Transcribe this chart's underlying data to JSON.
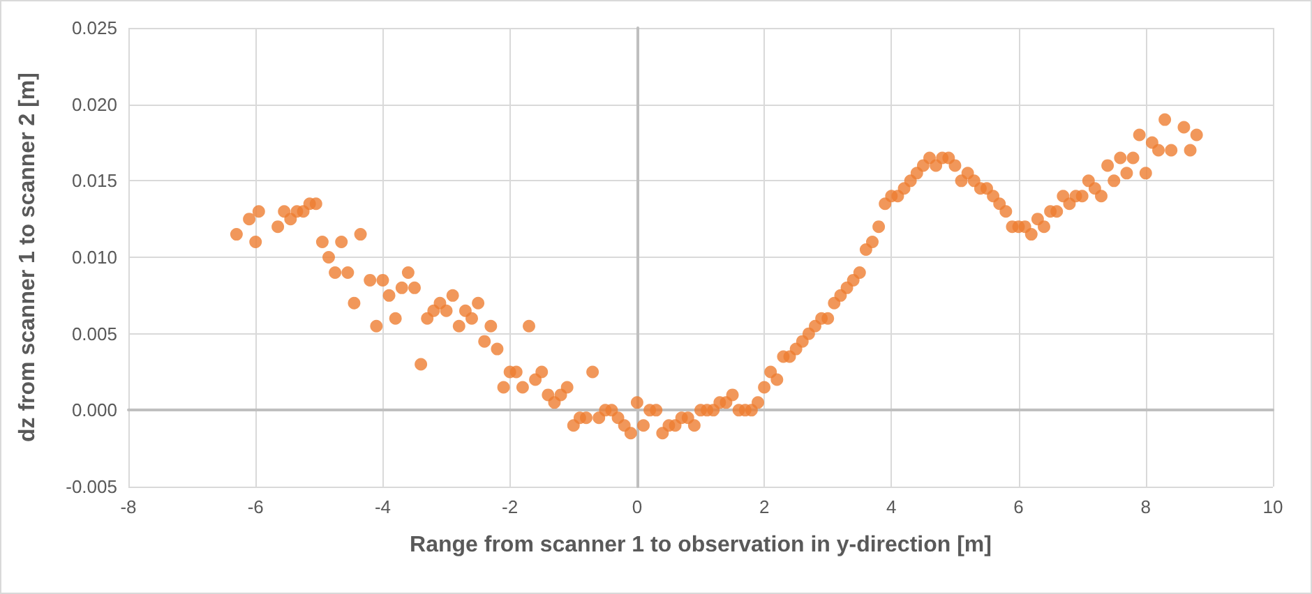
{
  "chart_data": {
    "type": "scatter",
    "xlabel": "Range from scanner 1 to observation in y-direction [m]",
    "ylabel": "dz from scanner 1 to scanner 2 [m]",
    "x": [
      -6.3,
      -6.1,
      -6.0,
      -5.95,
      -5.65,
      -5.55,
      -5.45,
      -5.35,
      -5.25,
      -5.15,
      -5.05,
      -4.95,
      -4.85,
      -4.75,
      -4.65,
      -4.55,
      -4.45,
      -4.35,
      -4.2,
      -4.1,
      -4.0,
      -3.9,
      -3.8,
      -3.7,
      -3.6,
      -3.5,
      -3.4,
      -3.3,
      -3.2,
      -3.1,
      -3.0,
      -2.9,
      -2.8,
      -2.7,
      -2.6,
      -2.5,
      -2.4,
      -2.3,
      -2.2,
      -2.1,
      -2.0,
      -1.9,
      -1.8,
      -1.7,
      -1.6,
      -1.5,
      -1.4,
      -1.3,
      -1.2,
      -1.1,
      -1.0,
      -0.9,
      -0.8,
      -0.7,
      -0.6,
      -0.5,
      -0.4,
      -0.3,
      -0.2,
      -0.1,
      0.0,
      0.1,
      0.2,
      0.3,
      0.4,
      0.5,
      0.6,
      0.7,
      0.8,
      0.9,
      1.0,
      1.1,
      1.2,
      1.3,
      1.4,
      1.5,
      1.6,
      1.7,
      1.8,
      1.9,
      2.0,
      2.1,
      2.2,
      2.3,
      2.4,
      2.5,
      2.6,
      2.7,
      2.8,
      2.9,
      3.0,
      3.1,
      3.2,
      3.3,
      3.4,
      3.5,
      3.6,
      3.7,
      3.8,
      3.9,
      4.0,
      4.1,
      4.2,
      4.3,
      4.4,
      4.5,
      4.6,
      4.7,
      4.8,
      4.9,
      5.0,
      5.1,
      5.2,
      5.3,
      5.4,
      5.5,
      5.6,
      5.7,
      5.8,
      5.9,
      6.0,
      6.1,
      6.2,
      6.3,
      6.4,
      6.5,
      6.6,
      6.7,
      6.8,
      6.9,
      7.0,
      7.1,
      7.2,
      7.3,
      7.4,
      7.5,
      7.6,
      7.7,
      7.8,
      7.9,
      8.0,
      8.1,
      8.2,
      8.3,
      8.4,
      8.6,
      8.7,
      8.8
    ],
    "series": [
      {
        "color": "#ed7d31",
        "values": [
          0.0115,
          0.0125,
          0.011,
          0.013,
          0.012,
          0.013,
          0.0125,
          0.013,
          0.013,
          0.0135,
          0.0135,
          0.011,
          0.01,
          0.009,
          0.011,
          0.009,
          0.007,
          0.0115,
          0.0085,
          0.0055,
          0.0085,
          0.0075,
          0.006,
          0.008,
          0.009,
          0.008,
          0.003,
          0.006,
          0.0065,
          0.007,
          0.0065,
          0.0075,
          0.0055,
          0.0065,
          0.006,
          0.007,
          0.0045,
          0.0055,
          0.004,
          0.0015,
          0.0025,
          0.0025,
          0.0015,
          0.0055,
          0.002,
          0.0025,
          0.001,
          0.0005,
          0.001,
          0.0015,
          -0.001,
          -0.0005,
          -0.0005,
          0.0025,
          -0.0005,
          0.0,
          0.0,
          -0.0005,
          -0.001,
          -0.0015,
          0.0005,
          -0.001,
          0.0,
          0.0,
          -0.0015,
          -0.001,
          -0.001,
          -0.0005,
          -0.0005,
          -0.001,
          0.0,
          0.0,
          0.0,
          0.0005,
          0.0005,
          0.001,
          0.0,
          0.0,
          0.0,
          0.0005,
          0.0015,
          0.0025,
          0.002,
          0.0035,
          0.0035,
          0.004,
          0.0045,
          0.005,
          0.0055,
          0.006,
          0.006,
          0.007,
          0.0075,
          0.008,
          0.0085,
          0.009,
          0.0105,
          0.011,
          0.012,
          0.0135,
          0.014,
          0.014,
          0.0145,
          0.015,
          0.0155,
          0.016,
          0.0165,
          0.016,
          0.0165,
          0.0165,
          0.016,
          0.015,
          0.0155,
          0.015,
          0.0145,
          0.0145,
          0.014,
          0.0135,
          0.013,
          0.012,
          0.012,
          0.012,
          0.0115,
          0.0125,
          0.012,
          0.013,
          0.013,
          0.014,
          0.0135,
          0.014,
          0.014,
          0.015,
          0.0145,
          0.014,
          0.016,
          0.015,
          0.0165,
          0.0155,
          0.0165,
          0.018,
          0.0155,
          0.0175,
          0.017,
          0.019,
          0.017,
          0.0185,
          0.017,
          0.018
        ]
      }
    ],
    "xlim": [
      -8,
      10
    ],
    "xticks": [
      -8,
      -6,
      -4,
      -2,
      0,
      2,
      4,
      6,
      8,
      10
    ],
    "ylim": [
      -0.005,
      0.025
    ],
    "yticks": [
      {
        "value": -0.005,
        "label": "-0.005"
      },
      {
        "value": 0,
        "label": "0.000"
      },
      {
        "value": 0.005,
        "label": "0.005"
      },
      {
        "value": 0.01,
        "label": "0.010"
      },
      {
        "value": 0.015,
        "label": "0.015"
      },
      {
        "value": 0.02,
        "label": "0.020"
      },
      {
        "value": 0.025,
        "label": "0.025"
      }
    ],
    "grid": true,
    "marker": "circle"
  }
}
